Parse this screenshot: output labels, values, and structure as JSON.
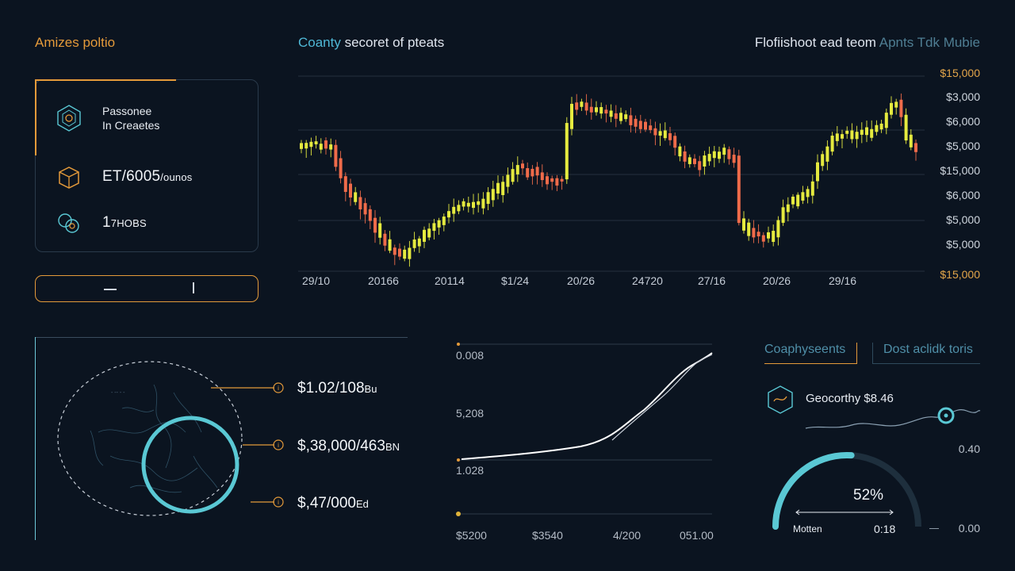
{
  "header": {
    "app_title": "Amizes poltio",
    "chart_title_accent": "Coanty",
    "chart_title_rest": " secoret of pteats",
    "right_title_main": "Flofiishoot ead teom",
    "right_title_muted": " Apnts Tdk Mubie"
  },
  "summary": {
    "label_line1": "Passonee",
    "label_line2": "In Creaetes",
    "big_value": "ET/6005",
    "big_value_suffix": "/ounos",
    "count_value": "1",
    "count_suffix": "7HOBS"
  },
  "candle_chart": {
    "y_labels": [
      "$15,000",
      "$3,000",
      "$6,000",
      "$5,000",
      "$15,000",
      "$6,000",
      "$5,000",
      "$5,000",
      "$15,000"
    ],
    "x_labels": [
      "29/10",
      "20166",
      "20114",
      "$1/24",
      "20/26",
      "24720",
      "27/16",
      "20/26",
      "29/16"
    ],
    "colors": {
      "up": "#e5ea3f",
      "down": "#ef6b4a",
      "grid": "#24313e"
    }
  },
  "map_values": [
    {
      "main": "$1.02/108",
      "suffix": "Bu"
    },
    {
      "main": "$,38,000/463",
      "suffix": "BN"
    },
    {
      "main": "$,47/000",
      "suffix": "Ed"
    }
  ],
  "line_chart": {
    "y_labels": [
      "0.008",
      "5,208",
      "1.028"
    ],
    "x_labels": [
      "$5200",
      "$3540",
      "4/200",
      "051.00"
    ]
  },
  "right_panel": {
    "tab_active": "Coaphyseents",
    "tab_inactive": "Dost aclidk toris",
    "geo_label": "Geocorthy $8.46",
    "value_top": "0.40",
    "value_bottom": "0.00",
    "gauge_percent": "52%",
    "gauge_left_label": "Motten",
    "gauge_right_label": "0:18",
    "gauge_level": 0.52
  },
  "colors": {
    "accent_orange": "#e49a3a",
    "accent_cyan": "#5ac8d4",
    "background": "#0b1420"
  }
}
